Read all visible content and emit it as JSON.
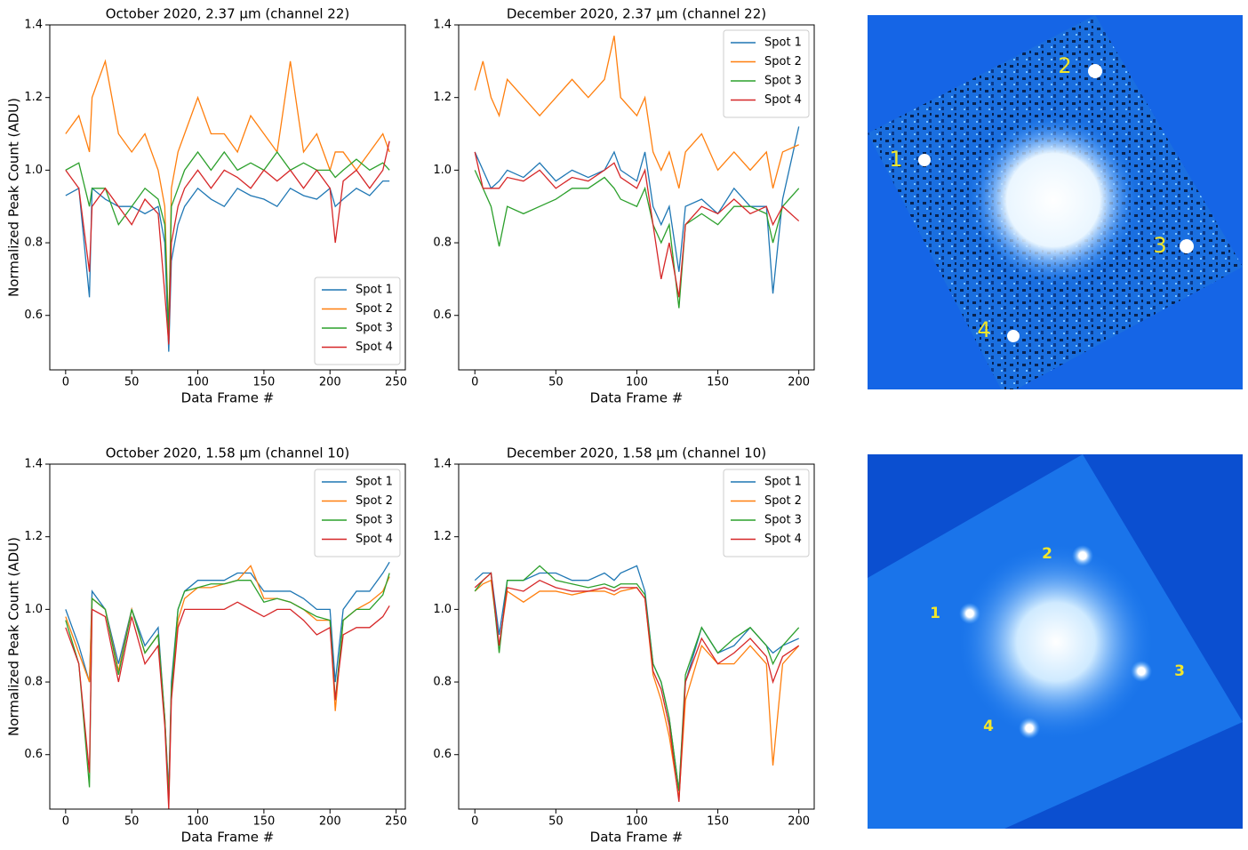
{
  "chart_data": [
    {
      "type": "line",
      "title": "October 2020, 2.37 μm (channel 22)",
      "xlabel": "Data Frame #",
      "ylabel": "Normalized Peak Count (ADU)",
      "x": [
        0,
        10,
        18,
        20,
        30,
        40,
        50,
        60,
        70,
        75,
        78,
        80,
        85,
        90,
        100,
        110,
        120,
        130,
        140,
        150,
        160,
        170,
        180,
        190,
        200,
        204,
        210,
        220,
        230,
        240,
        245
      ],
      "xlim": [
        -12,
        257
      ],
      "ylim": [
        0.45,
        1.4
      ],
      "xticks": [
        0,
        50,
        100,
        150,
        200,
        250
      ],
      "yticks": [
        0.6,
        0.8,
        {
          "value": 1,
          "label": "1.0"
        },
        1.2,
        1.4
      ],
      "legend": "lower right",
      "series": [
        {
          "name": "Spot 1",
          "color": "#1f77b4",
          "values": [
            0.93,
            0.95,
            0.65,
            0.95,
            0.92,
            0.9,
            0.9,
            0.88,
            0.9,
            0.8,
            0.5,
            0.75,
            0.85,
            0.9,
            0.95,
            0.92,
            0.9,
            0.95,
            0.93,
            0.92,
            0.9,
            0.95,
            0.93,
            0.92,
            0.95,
            0.9,
            0.92,
            0.95,
            0.93,
            0.97,
            0.97
          ]
        },
        {
          "name": "Spot 2",
          "color": "#ff7f0e",
          "values": [
            1.1,
            1.15,
            1.05,
            1.2,
            1.3,
            1.1,
            1.05,
            1.1,
            1.0,
            0.9,
            0.55,
            0.95,
            1.05,
            1.1,
            1.2,
            1.1,
            1.1,
            1.05,
            1.15,
            1.1,
            1.05,
            1.3,
            1.05,
            1.1,
            1.0,
            1.05,
            1.05,
            1.0,
            1.05,
            1.1,
            1.05
          ]
        },
        {
          "name": "Spot 3",
          "color": "#2ca02c",
          "values": [
            1.0,
            1.02,
            0.9,
            0.95,
            0.95,
            0.85,
            0.9,
            0.95,
            0.92,
            0.85,
            0.55,
            0.9,
            0.95,
            1.0,
            1.05,
            1.0,
            1.05,
            1.0,
            1.02,
            1.0,
            1.05,
            1.0,
            1.02,
            1.0,
            1.0,
            0.98,
            1.0,
            1.03,
            1.0,
            1.02,
            1.0
          ]
        },
        {
          "name": "Spot 4",
          "color": "#d62728",
          "values": [
            1.0,
            0.95,
            0.72,
            0.9,
            0.95,
            0.9,
            0.85,
            0.92,
            0.88,
            0.66,
            0.52,
            0.8,
            0.9,
            0.95,
            1.0,
            0.95,
            1.0,
            0.98,
            0.95,
            1.0,
            0.97,
            1.0,
            0.95,
            1.0,
            0.95,
            0.8,
            0.97,
            1.0,
            0.95,
            1.0,
            1.08
          ]
        }
      ]
    },
    {
      "type": "line",
      "title": "December 2020, 2.37 μm (channel 22)",
      "xlabel": "Data Frame #",
      "x": [
        0,
        5,
        10,
        15,
        20,
        30,
        40,
        50,
        60,
        70,
        80,
        86,
        90,
        100,
        105,
        110,
        115,
        120,
        126,
        130,
        140,
        150,
        160,
        170,
        180,
        184,
        190,
        200
      ],
      "xlim": [
        -10,
        209.5
      ],
      "ylim": [
        0.45,
        1.4
      ],
      "xticks": [
        0,
        50,
        100,
        150,
        200
      ],
      "yticks": [
        0.6,
        0.8,
        {
          "value": 1,
          "label": "1.0"
        },
        1.2,
        1.4
      ],
      "legend": "upper right",
      "series": [
        {
          "name": "Spot 1",
          "color": "#1f77b4",
          "values": [
            1.05,
            1.0,
            0.95,
            0.97,
            1.0,
            0.98,
            1.02,
            0.97,
            1.0,
            0.98,
            1.0,
            1.05,
            1.0,
            0.97,
            1.05,
            0.9,
            0.85,
            0.9,
            0.72,
            0.9,
            0.92,
            0.88,
            0.95,
            0.9,
            0.9,
            0.66,
            0.92,
            1.12
          ]
        },
        {
          "name": "Spot 2",
          "color": "#ff7f0e",
          "values": [
            1.22,
            1.3,
            1.2,
            1.15,
            1.25,
            1.2,
            1.15,
            1.2,
            1.25,
            1.2,
            1.25,
            1.37,
            1.2,
            1.15,
            1.2,
            1.05,
            1.0,
            1.05,
            0.95,
            1.05,
            1.1,
            1.0,
            1.05,
            1.0,
            1.05,
            0.95,
            1.05,
            1.07
          ]
        },
        {
          "name": "Spot 3",
          "color": "#2ca02c",
          "values": [
            1.0,
            0.95,
            0.9,
            0.79,
            0.9,
            0.88,
            0.9,
            0.92,
            0.95,
            0.95,
            0.98,
            0.95,
            0.92,
            0.9,
            0.95,
            0.85,
            0.8,
            0.85,
            0.62,
            0.85,
            0.88,
            0.85,
            0.9,
            0.9,
            0.88,
            0.8,
            0.9,
            0.95
          ]
        },
        {
          "name": "Spot 4",
          "color": "#d62728",
          "values": [
            1.05,
            0.95,
            0.95,
            0.95,
            0.98,
            0.97,
            1.0,
            0.95,
            0.98,
            0.97,
            1.0,
            1.02,
            0.98,
            0.95,
            1.0,
            0.85,
            0.7,
            0.8,
            0.65,
            0.85,
            0.9,
            0.88,
            0.92,
            0.88,
            0.9,
            0.85,
            0.9,
            0.86
          ]
        }
      ]
    },
    {
      "type": "line",
      "title": "October 2020, 1.58 μm (channel 10)",
      "xlabel": "Data Frame #",
      "ylabel": "Normalized Peak Count (ADU)",
      "x": [
        0,
        10,
        18,
        20,
        30,
        40,
        50,
        60,
        70,
        75,
        78,
        80,
        85,
        90,
        100,
        110,
        120,
        130,
        140,
        150,
        160,
        170,
        180,
        190,
        200,
        204,
        210,
        220,
        230,
        240,
        245
      ],
      "xlim": [
        -12,
        257
      ],
      "ylim": [
        0.45,
        1.4
      ],
      "xticks": [
        0,
        50,
        100,
        150,
        200,
        250
      ],
      "yticks": [
        0.6,
        0.8,
        {
          "value": 1,
          "label": "1.0"
        },
        1.2,
        1.4
      ],
      "legend": "upper right",
      "series": [
        {
          "name": "Spot 1",
          "color": "#1f77b4",
          "values": [
            1.0,
            0.9,
            0.8,
            1.05,
            1.0,
            0.85,
            1.0,
            0.9,
            0.95,
            0.7,
            0.5,
            0.8,
            1.0,
            1.05,
            1.08,
            1.08,
            1.08,
            1.1,
            1.1,
            1.05,
            1.05,
            1.05,
            1.03,
            1.0,
            1.0,
            0.8,
            1.0,
            1.05,
            1.05,
            1.1,
            1.13
          ]
        },
        {
          "name": "Spot 2",
          "color": "#ff7f0e",
          "values": [
            0.98,
            0.88,
            0.8,
            1.03,
            1.0,
            0.83,
            1.0,
            0.88,
            0.93,
            0.7,
            0.48,
            0.78,
            0.97,
            1.03,
            1.06,
            1.06,
            1.07,
            1.08,
            1.12,
            1.03,
            1.03,
            1.02,
            1.0,
            0.97,
            0.97,
            0.72,
            0.97,
            1.0,
            1.02,
            1.05,
            1.09
          ]
        },
        {
          "name": "Spot 3",
          "color": "#2ca02c",
          "values": [
            0.97,
            0.85,
            0.51,
            1.03,
            1.0,
            0.82,
            1.0,
            0.88,
            0.93,
            0.7,
            0.47,
            0.78,
            1.0,
            1.05,
            1.06,
            1.07,
            1.07,
            1.08,
            1.08,
            1.02,
            1.03,
            1.02,
            1.0,
            0.98,
            0.97,
            0.75,
            0.97,
            1.0,
            1.0,
            1.04,
            1.1
          ]
        },
        {
          "name": "Spot 4",
          "color": "#d62728",
          "values": [
            0.95,
            0.85,
            0.55,
            1.0,
            0.98,
            0.8,
            0.98,
            0.85,
            0.9,
            0.68,
            0.45,
            0.75,
            0.95,
            1.0,
            1.0,
            1.0,
            1.0,
            1.02,
            1.0,
            0.98,
            1.0,
            1.0,
            0.97,
            0.93,
            0.95,
            0.75,
            0.93,
            0.95,
            0.95,
            0.98,
            1.01
          ]
        }
      ]
    },
    {
      "type": "line",
      "title": "December 2020, 1.58 μm (channel 10)",
      "xlabel": "Data Frame #",
      "x": [
        0,
        5,
        10,
        15,
        20,
        30,
        40,
        50,
        60,
        70,
        80,
        86,
        90,
        100,
        105,
        110,
        115,
        120,
        126,
        130,
        140,
        150,
        160,
        170,
        180,
        184,
        190,
        200
      ],
      "xlim": [
        -10,
        209.5
      ],
      "ylim": [
        0.45,
        1.4
      ],
      "xticks": [
        0,
        50,
        100,
        150,
        200
      ],
      "yticks": [
        0.6,
        0.8,
        {
          "value": 1,
          "label": "1.0"
        },
        1.2,
        1.4
      ],
      "legend": "upper right",
      "series": [
        {
          "name": "Spot 1",
          "color": "#1f77b4",
          "values": [
            1.08,
            1.1,
            1.1,
            0.93,
            1.08,
            1.08,
            1.1,
            1.1,
            1.08,
            1.08,
            1.1,
            1.08,
            1.1,
            1.12,
            1.05,
            0.85,
            0.8,
            0.7,
            0.5,
            0.8,
            0.95,
            0.88,
            0.9,
            0.95,
            0.9,
            0.88,
            0.9,
            0.92
          ]
        },
        {
          "name": "Spot 2",
          "color": "#ff7f0e",
          "values": [
            1.05,
            1.07,
            1.08,
            0.9,
            1.05,
            1.02,
            1.05,
            1.05,
            1.04,
            1.05,
            1.05,
            1.04,
            1.05,
            1.06,
            1.03,
            0.82,
            0.75,
            0.65,
            0.48,
            0.75,
            0.9,
            0.85,
            0.85,
            0.9,
            0.85,
            0.57,
            0.85,
            0.9
          ]
        },
        {
          "name": "Spot 3",
          "color": "#2ca02c",
          "values": [
            1.05,
            1.08,
            1.1,
            0.88,
            1.08,
            1.08,
            1.12,
            1.08,
            1.07,
            1.06,
            1.07,
            1.06,
            1.07,
            1.07,
            1.04,
            0.85,
            0.8,
            0.7,
            0.5,
            0.82,
            0.95,
            0.88,
            0.92,
            0.95,
            0.9,
            0.85,
            0.9,
            0.95
          ]
        },
        {
          "name": "Spot 4",
          "color": "#d62728",
          "values": [
            1.06,
            1.08,
            1.1,
            0.9,
            1.06,
            1.05,
            1.08,
            1.06,
            1.05,
            1.05,
            1.06,
            1.05,
            1.06,
            1.06,
            1.03,
            0.83,
            0.78,
            0.68,
            0.47,
            0.8,
            0.92,
            0.85,
            0.88,
            0.92,
            0.87,
            0.8,
            0.87,
            0.9
          ]
        }
      ]
    }
  ],
  "images": [
    {
      "labels": [
        "1",
        "2",
        "3",
        "4"
      ]
    },
    {
      "labels": [
        "1",
        "2",
        "3",
        "4"
      ]
    }
  ]
}
